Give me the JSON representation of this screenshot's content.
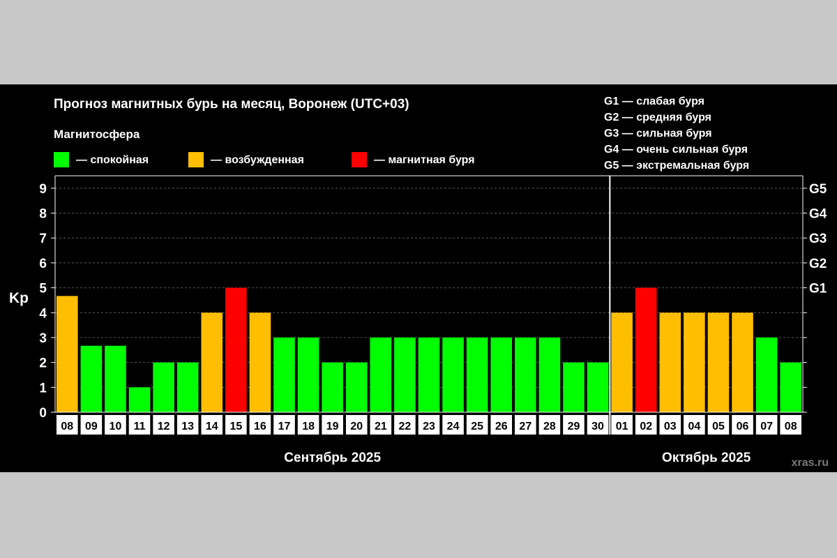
{
  "chart_data": {
    "type": "bar",
    "title": "Прогноз магнитных бурь на месяц, Воронеж (UTC+03)",
    "subtitle": "Магнитосфера",
    "legend": [
      {
        "label": "— спокойная",
        "color": "#00ff00"
      },
      {
        "label": "— возбужденная",
        "color": "#ffbf00"
      },
      {
        "label": "— магнитная буря",
        "color": "#ff0000"
      }
    ],
    "storm_scale": [
      "G1 — слабая буря",
      "G2 — средняя буря",
      "G3 — сильная буря",
      "G4 — очень сильная буря",
      "G5 — экстремальная буря"
    ],
    "ylabel": "Kp",
    "ylim": [
      0,
      9.5
    ],
    "yticks": [
      "0",
      "1",
      "2",
      "3",
      "4",
      "5",
      "6",
      "7",
      "8",
      "9"
    ],
    "right_ticks": [
      {
        "value": 5,
        "label": "G1"
      },
      {
        "value": 6,
        "label": "G2"
      },
      {
        "value": 7,
        "label": "G3"
      },
      {
        "value": 8,
        "label": "G4"
      },
      {
        "value": 9,
        "label": "G5"
      }
    ],
    "grid": true,
    "categories": [
      "08",
      "09",
      "10",
      "11",
      "12",
      "13",
      "14",
      "15",
      "16",
      "17",
      "18",
      "19",
      "20",
      "21",
      "22",
      "23",
      "24",
      "25",
      "26",
      "27",
      "28",
      "29",
      "30",
      "01",
      "02",
      "03",
      "04",
      "05",
      "06",
      "07",
      "08"
    ],
    "values": [
      4.67,
      2.67,
      2.67,
      1,
      2,
      2,
      4,
      5,
      4,
      3,
      3,
      2,
      2,
      3,
      3,
      3,
      3,
      3,
      3,
      3,
      3,
      2,
      2,
      4,
      5,
      4,
      4,
      4,
      4,
      3,
      2
    ],
    "levels": [
      "возбужденная",
      "спокойная",
      "спокойная",
      "спокойная",
      "спокойная",
      "спокойная",
      "возбужденная",
      "магнитная буря",
      "возбужденная",
      "спокойная",
      "спокойная",
      "спокойная",
      "спокойная",
      "спокойная",
      "спокойная",
      "спокойная",
      "спокойная",
      "спокойная",
      "спокойная",
      "спокойная",
      "спокойная",
      "спокойная",
      "спокойная",
      "возбужденная",
      "магнитная буря",
      "возбужденная",
      "возбужденная",
      "возбужденная",
      "возбужденная",
      "спокойная",
      "спокойная"
    ],
    "months": [
      {
        "label": "Сентябрь 2025",
        "first_index": 0,
        "last_index": 22
      },
      {
        "label": "Октябрь 2025",
        "first_index": 23,
        "last_index": 30
      }
    ],
    "divider_after_index": 22
  },
  "source": "xras.ru"
}
